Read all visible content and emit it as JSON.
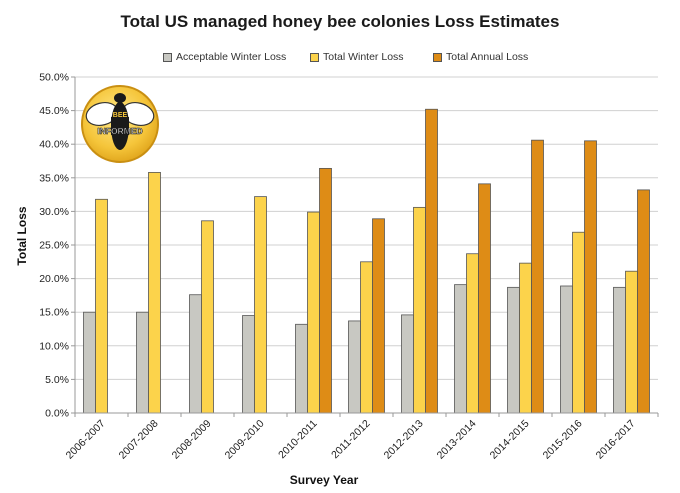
{
  "chart_data": {
    "type": "bar",
    "title": "Total US managed honey bee colonies Loss Estimates",
    "xlabel": "Survey Year",
    "ylabel": "Total Loss",
    "ylim": [
      0,
      50
    ],
    "ytick_step": 5,
    "ytick_suffix": "%",
    "grid": true,
    "legend_position": "top",
    "categories": [
      "2006-2007",
      "2007-2008",
      "2008-2009",
      "2009-2010",
      "2010-2011",
      "2011-2012",
      "2012-2013",
      "2013-2014",
      "2014-2015",
      "2015-2016",
      "2016-2017"
    ],
    "series": [
      {
        "name": "Acceptable Winter Loss",
        "color": "#c8c8c2",
        "values": [
          15.0,
          15.0,
          17.6,
          14.5,
          13.2,
          13.7,
          14.6,
          19.1,
          18.7,
          18.9,
          18.7
        ]
      },
      {
        "name": "Total Winter Loss",
        "color": "#fcd34b",
        "values": [
          31.8,
          35.8,
          28.6,
          32.2,
          29.9,
          22.5,
          30.6,
          23.7,
          22.3,
          26.9,
          21.1
        ]
      },
      {
        "name": "Total Annual Loss",
        "color": "#de8c16",
        "values": [
          null,
          null,
          null,
          null,
          36.4,
          28.9,
          45.2,
          34.1,
          40.6,
          40.5,
          33.2
        ]
      }
    ]
  },
  "logo": {
    "line1": "BEE",
    "line2": "INFORMED"
  }
}
